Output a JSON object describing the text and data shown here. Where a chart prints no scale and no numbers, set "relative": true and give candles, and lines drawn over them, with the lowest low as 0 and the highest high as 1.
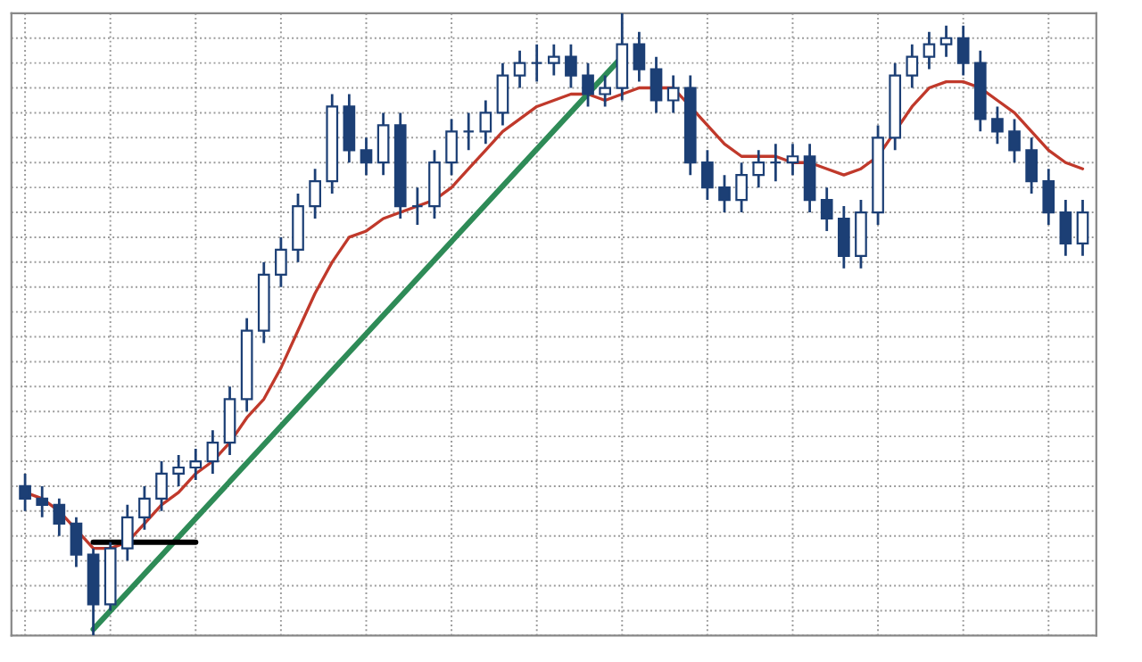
{
  "chart_data": {
    "type": "candlestick",
    "relative": true,
    "grid": true,
    "tick_labels": false,
    "color": "#1c3f75",
    "categories": [
      null,
      null,
      null,
      null,
      null,
      null,
      null,
      null,
      null,
      null,
      null,
      null,
      null,
      null,
      null,
      null,
      null,
      null,
      null,
      null,
      null,
      null,
      null,
      null,
      null,
      null,
      null,
      null,
      null,
      null,
      null,
      null,
      null,
      null,
      null,
      null,
      null,
      null,
      null,
      null,
      null,
      null,
      null,
      null,
      null,
      null,
      null,
      null,
      null,
      null,
      null,
      null,
      null,
      null,
      null,
      null,
      null,
      null,
      null,
      null,
      null,
      null,
      null
    ],
    "ohlc": [
      [
        0.24,
        0.26,
        0.2,
        0.22
      ],
      [
        0.22,
        0.24,
        0.19,
        0.21
      ],
      [
        0.21,
        0.22,
        0.16,
        0.18
      ],
      [
        0.18,
        0.19,
        0.11,
        0.13
      ],
      [
        0.13,
        0.14,
        0.0,
        0.05
      ],
      [
        0.05,
        0.15,
        0.04,
        0.14
      ],
      [
        0.14,
        0.21,
        0.12,
        0.19
      ],
      [
        0.19,
        0.24,
        0.17,
        0.22
      ],
      [
        0.22,
        0.28,
        0.2,
        0.26
      ],
      [
        0.26,
        0.29,
        0.24,
        0.27
      ],
      [
        0.27,
        0.3,
        0.25,
        0.28
      ],
      [
        0.28,
        0.33,
        0.26,
        0.31
      ],
      [
        0.31,
        0.4,
        0.29,
        0.38
      ],
      [
        0.38,
        0.51,
        0.36,
        0.49
      ],
      [
        0.49,
        0.6,
        0.47,
        0.58
      ],
      [
        0.58,
        0.64,
        0.56,
        0.62
      ],
      [
        0.62,
        0.71,
        0.6,
        0.69
      ],
      [
        0.69,
        0.75,
        0.67,
        0.73
      ],
      [
        0.73,
        0.87,
        0.71,
        0.85
      ],
      [
        0.85,
        0.87,
        0.76,
        0.78
      ],
      [
        0.78,
        0.8,
        0.74,
        0.76
      ],
      [
        0.76,
        0.84,
        0.74,
        0.82
      ],
      [
        0.82,
        0.84,
        0.67,
        0.69
      ],
      [
        0.69,
        0.72,
        0.66,
        0.69
      ],
      [
        0.69,
        0.78,
        0.67,
        0.76
      ],
      [
        0.76,
        0.83,
        0.74,
        0.81
      ],
      [
        0.81,
        0.84,
        0.78,
        0.81
      ],
      [
        0.81,
        0.86,
        0.79,
        0.84
      ],
      [
        0.84,
        0.92,
        0.82,
        0.9
      ],
      [
        0.9,
        0.94,
        0.88,
        0.92
      ],
      [
        0.92,
        0.95,
        0.89,
        0.92
      ],
      [
        0.92,
        0.95,
        0.9,
        0.93
      ],
      [
        0.93,
        0.95,
        0.88,
        0.9
      ],
      [
        0.9,
        0.92,
        0.85,
        0.87
      ],
      [
        0.87,
        0.9,
        0.85,
        0.88
      ],
      [
        0.88,
        1.0,
        0.86,
        0.95
      ],
      [
        0.95,
        0.97,
        0.89,
        0.91
      ],
      [
        0.91,
        0.93,
        0.84,
        0.86
      ],
      [
        0.86,
        0.9,
        0.84,
        0.88
      ],
      [
        0.88,
        0.9,
        0.74,
        0.76
      ],
      [
        0.76,
        0.78,
        0.7,
        0.72
      ],
      [
        0.72,
        0.74,
        0.68,
        0.7
      ],
      [
        0.7,
        0.76,
        0.68,
        0.74
      ],
      [
        0.74,
        0.78,
        0.72,
        0.76
      ],
      [
        0.76,
        0.79,
        0.73,
        0.76
      ],
      [
        0.76,
        0.79,
        0.74,
        0.77
      ],
      [
        0.77,
        0.79,
        0.68,
        0.7
      ],
      [
        0.7,
        0.72,
        0.65,
        0.67
      ],
      [
        0.67,
        0.69,
        0.59,
        0.61
      ],
      [
        0.61,
        0.7,
        0.59,
        0.68
      ],
      [
        0.68,
        0.82,
        0.66,
        0.8
      ],
      [
        0.8,
        0.92,
        0.78,
        0.9
      ],
      [
        0.9,
        0.95,
        0.88,
        0.93
      ],
      [
        0.93,
        0.97,
        0.91,
        0.95
      ],
      [
        0.95,
        0.98,
        0.93,
        0.96
      ],
      [
        0.96,
        0.98,
        0.9,
        0.92
      ],
      [
        0.92,
        0.94,
        0.81,
        0.83
      ],
      [
        0.83,
        0.85,
        0.79,
        0.81
      ],
      [
        0.81,
        0.83,
        0.76,
        0.78
      ],
      [
        0.78,
        0.8,
        0.71,
        0.73
      ],
      [
        0.73,
        0.75,
        0.66,
        0.68
      ],
      [
        0.68,
        0.7,
        0.61,
        0.63
      ],
      [
        0.63,
        0.7,
        0.61,
        0.68
      ]
    ],
    "series": [
      {
        "type": "line",
        "color": "#c0392b",
        "values": [
          0.23,
          0.22,
          0.2,
          0.17,
          0.14,
          0.14,
          0.15,
          0.18,
          0.21,
          0.23,
          0.26,
          0.28,
          0.31,
          0.35,
          0.38,
          0.43,
          0.49,
          0.55,
          0.6,
          0.64,
          0.65,
          0.67,
          0.68,
          0.69,
          0.7,
          0.72,
          0.75,
          0.78,
          0.81,
          0.83,
          0.85,
          0.86,
          0.87,
          0.87,
          0.86,
          0.87,
          0.88,
          0.88,
          0.88,
          0.85,
          0.82,
          0.79,
          0.77,
          0.77,
          0.77,
          0.76,
          0.76,
          0.75,
          0.74,
          0.75,
          0.77,
          0.81,
          0.85,
          0.88,
          0.89,
          0.89,
          0.88,
          0.86,
          0.84,
          0.81,
          0.78,
          0.76,
          0.75
        ]
      },
      {
        "type": "line",
        "color": "#2e8b57",
        "values": [
          null,
          null,
          null,
          null,
          0.01,
          null,
          null,
          null,
          null,
          null,
          null,
          null,
          null,
          null,
          null,
          null,
          null,
          null,
          null,
          null,
          null,
          null,
          null,
          null,
          null,
          null,
          null,
          null,
          null,
          null,
          null,
          null,
          null,
          null,
          null,
          0.93,
          null,
          null,
          null,
          null,
          null,
          null,
          null,
          null,
          null,
          null,
          null,
          null,
          null,
          null,
          null,
          null,
          null,
          null,
          null,
          null,
          null,
          null,
          null,
          null,
          null,
          null,
          null
        ]
      },
      {
        "type": "line",
        "color": "#000000",
        "values": [
          null,
          null,
          null,
          null,
          0.15,
          0.15,
          0.15,
          0.15,
          0.15,
          0.15,
          0.15,
          null,
          null,
          null,
          null,
          null,
          null,
          null,
          null,
          null,
          null,
          null,
          null,
          null,
          null,
          null,
          null,
          null,
          null,
          null,
          null,
          null,
          null,
          null,
          null,
          null,
          null,
          null,
          null,
          null,
          null,
          null,
          null,
          null,
          null,
          null,
          null,
          null,
          null,
          null,
          null,
          null,
          null,
          null,
          null,
          null,
          null,
          null,
          null,
          null,
          null,
          null,
          null
        ]
      }
    ]
  }
}
